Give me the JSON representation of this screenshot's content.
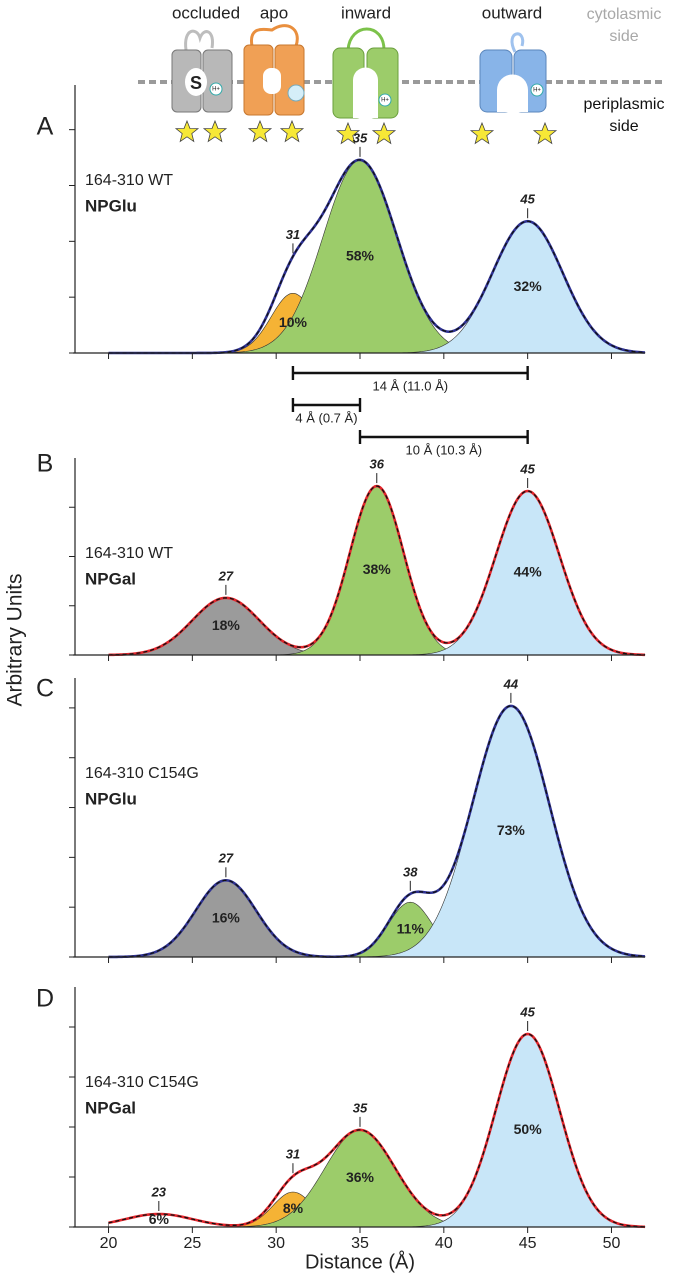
{
  "cartoon": {
    "states": [
      "occluded",
      "apo",
      "inward",
      "outward"
    ],
    "sides": [
      "cytolasmic side",
      "periplasmic side"
    ],
    "substrate": "S",
    "proton": "H+"
  },
  "figure": {
    "ylabel": "Arbitrary Units",
    "distances": [
      {
        "from": 31,
        "to": 45,
        "label": "14 Å (11.0 Å)"
      },
      {
        "from": 31,
        "to": 35,
        "label": "4 Å (0.7 Å)"
      },
      {
        "from": 35,
        "to": 45,
        "label": "10 Å (10.3 Å)"
      }
    ]
  },
  "chart_data": [
    {
      "type": "area",
      "panel": "A",
      "sample": "164-310 WT",
      "ligand": "NPGlu",
      "color": "#2e3192",
      "xlim": [
        18,
        52
      ],
      "xticks": [
        20,
        25,
        30,
        35,
        40,
        45,
        50
      ],
      "ylim": [
        0,
        4.8
      ],
      "yticks": [
        0,
        1,
        2,
        3,
        4
      ],
      "components": {
        "peaks": [
          31,
          35,
          45
        ],
        "heights": [
          1.07,
          3.45,
          2.36
        ],
        "widths": [
          1.3,
          2.2,
          2.1
        ],
        "values": [
          10,
          58,
          32
        ],
        "value_labels": [
          "10%",
          "58%",
          "32%"
        ],
        "colors": [
          "#f5b335",
          "#9ccc6a",
          "#c8e6f8"
        ]
      }
    },
    {
      "type": "area",
      "panel": "B",
      "sample": "164-310 WT",
      "ligand": "NPGal",
      "color": "#e3242b",
      "xlim": [
        18,
        52
      ],
      "xticks": [
        20,
        25,
        30,
        35,
        40,
        45,
        50
      ],
      "ylim": [
        0,
        4
      ],
      "yticks": [
        0,
        1,
        2,
        3
      ],
      "components": {
        "peaks": [
          27,
          36,
          45
        ],
        "heights": [
          1.16,
          3.43,
          3.33
        ],
        "widths": [
          2.0,
          1.6,
          1.9
        ],
        "values": [
          18,
          38,
          44
        ],
        "value_labels": [
          "18%",
          "38%",
          "44%"
        ],
        "colors": [
          "#9b9b9b",
          "#9ccc6a",
          "#c8e6f8"
        ]
      }
    },
    {
      "type": "area",
      "panel": "C",
      "sample": "164-310 C154G",
      "ligand": "NPGlu",
      "color": "#2e3192",
      "xlim": [
        18,
        52
      ],
      "xticks": [
        20,
        25,
        30,
        35,
        40,
        45,
        50
      ],
      "ylim": [
        0,
        5.6
      ],
      "yticks": [
        0,
        1,
        2,
        3,
        4,
        5
      ],
      "components": {
        "peaks": [
          27,
          38,
          44
        ],
        "heights": [
          1.54,
          1.1,
          5.04
        ],
        "widths": [
          1.8,
          1.3,
          2.3
        ],
        "values": [
          16,
          11,
          73
        ],
        "value_labels": [
          "16%",
          "11%",
          "73%"
        ],
        "colors": [
          "#9b9b9b",
          "#9ccc6a",
          "#c8e6f8"
        ]
      }
    },
    {
      "type": "area",
      "panel": "D",
      "sample": "164-310 C154G",
      "ligand": "NPGal",
      "color": "#e3242b",
      "xlim": [
        18,
        52
      ],
      "xticks": [
        20,
        25,
        30,
        35,
        40,
        45,
        50
      ],
      "ylim": [
        0,
        4.8
      ],
      "yticks": [
        0,
        1,
        2,
        3,
        4
      ],
      "xlabel": "Distance (Å)",
      "components": {
        "peaks": [
          23,
          31,
          35,
          45
        ],
        "heights": [
          0.26,
          0.7,
          1.94,
          3.86
        ],
        "widths": [
          2.0,
          1.2,
          2.1,
          1.9
        ],
        "values": [
          6,
          8,
          36,
          50
        ],
        "value_labels": [
          "6%",
          "8%",
          "36%",
          "50%"
        ],
        "colors": [
          "#ffffff",
          "#f5b335",
          "#9ccc6a",
          "#c8e6f8"
        ]
      }
    }
  ]
}
